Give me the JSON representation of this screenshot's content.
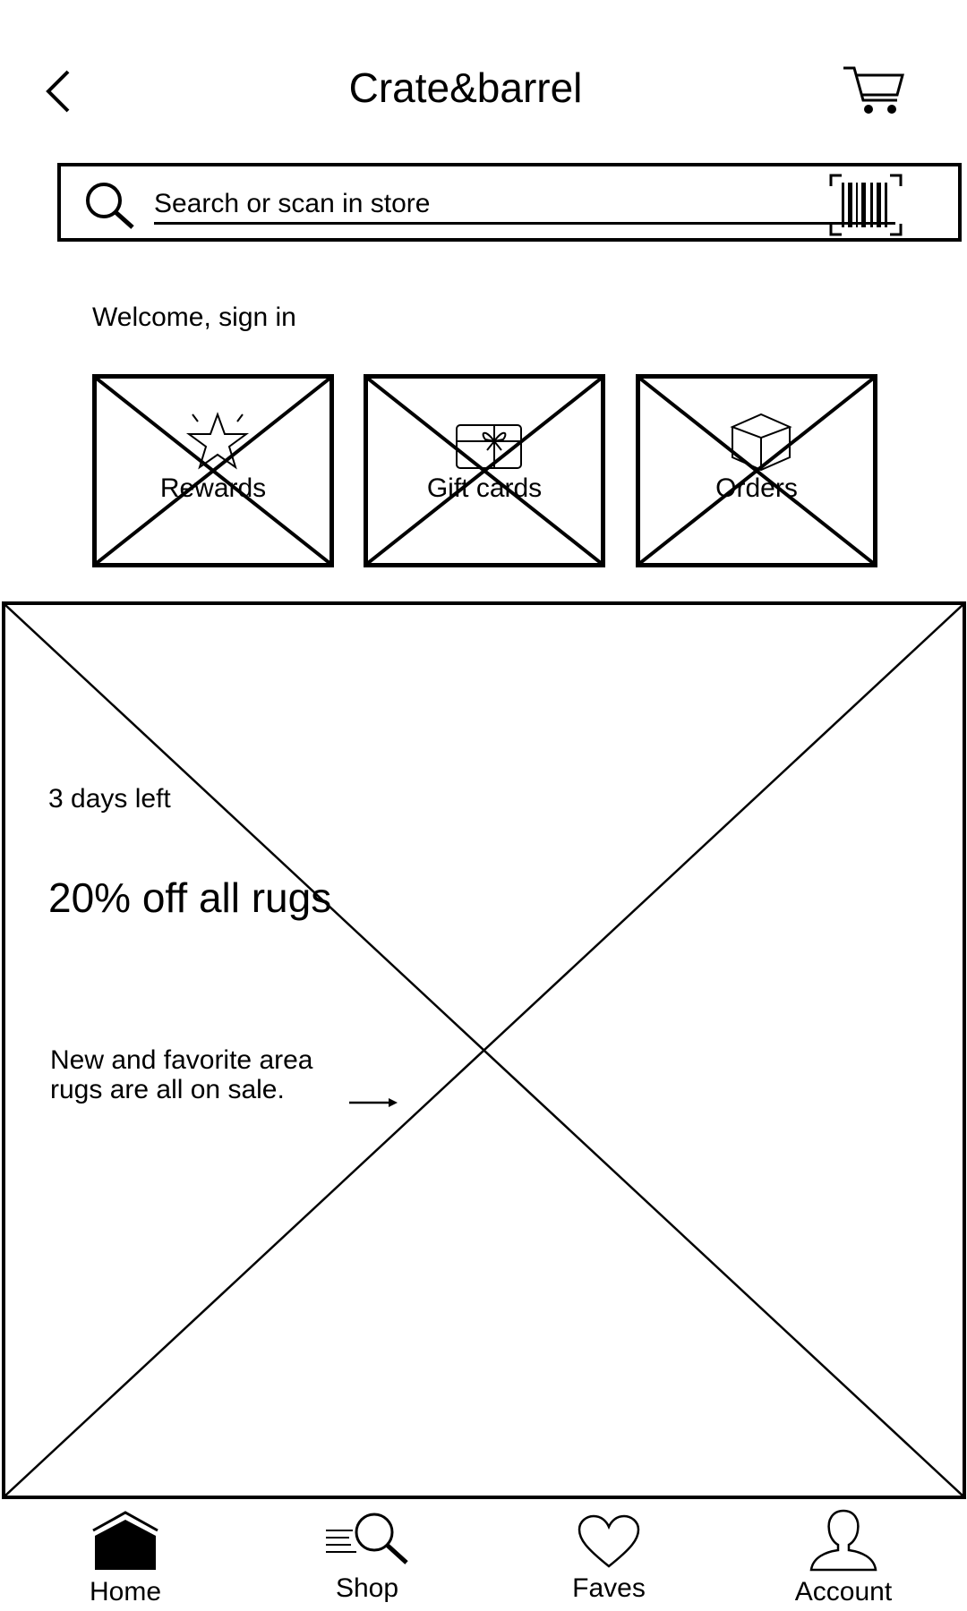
{
  "header": {
    "title": "Crate&barrel",
    "back_icon": "chevron-left-icon",
    "cart_icon": "cart-icon"
  },
  "search": {
    "placeholder": "Search or scan in store",
    "value": "",
    "search_icon": "search-icon",
    "scan_icon": "barcode-scan-icon"
  },
  "welcome": {
    "text": "Welcome, sign in"
  },
  "tiles": [
    {
      "label": "Rewards",
      "icon": "star-icon"
    },
    {
      "label": "Gift cards",
      "icon": "gift-card-icon"
    },
    {
      "label": "Orders",
      "icon": "box-icon"
    }
  ],
  "hero": {
    "days_left": "3 days left",
    "headline": "20% off all rugs",
    "description": "New and favorite area rugs are all on sale.",
    "arrow_icon": "arrow-right-icon"
  },
  "bottom_nav": [
    {
      "label": "Home",
      "icon": "home-icon",
      "active": true
    },
    {
      "label": "Shop",
      "icon": "shop-search-icon",
      "active": false
    },
    {
      "label": "Faves",
      "icon": "heart-icon",
      "active": false
    },
    {
      "label": "Account",
      "icon": "user-icon",
      "active": false
    }
  ]
}
